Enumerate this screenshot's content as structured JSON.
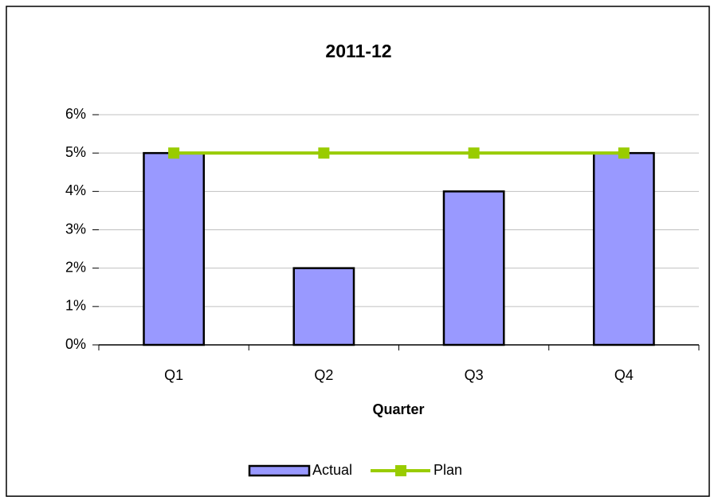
{
  "chart_data": {
    "type": "bar",
    "title": "2011-12",
    "x_label": "Quarter",
    "categories": [
      "Q1",
      "Q2",
      "Q3",
      "Q4"
    ],
    "series": [
      {
        "name": "Actual",
        "type": "bar",
        "color": "#9999ff",
        "values": [
          5,
          2,
          4,
          5
        ]
      },
      {
        "name": "Plan",
        "type": "line",
        "color": "#99cc00",
        "values": [
          5,
          5,
          5,
          5
        ]
      }
    ],
    "ylim": [
      0,
      6
    ],
    "yticks": [
      {
        "value": 0,
        "label": "0%"
      },
      {
        "value": 1,
        "label": "1%"
      },
      {
        "value": 2,
        "label": "2%"
      },
      {
        "value": 3,
        "label": "3%"
      },
      {
        "value": 4,
        "label": "4%"
      },
      {
        "value": 5,
        "label": "5%"
      },
      {
        "value": 6,
        "label": "6%"
      }
    ],
    "grid": true,
    "legend": "bottom"
  }
}
